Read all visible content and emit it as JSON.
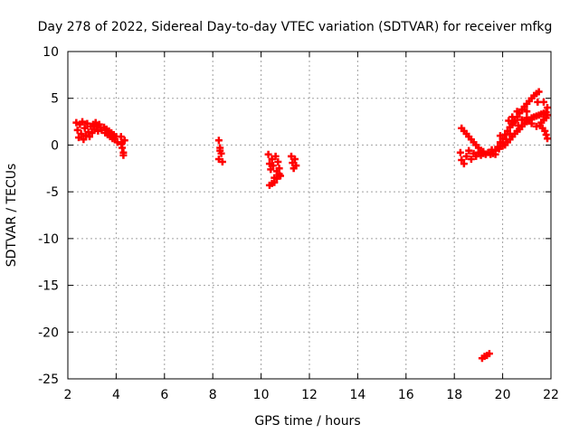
{
  "chart_data": {
    "type": "scatter",
    "title": "Day 278 of 2022, Sidereal Day-to-day VTEC variation (SDTVAR) for receiver mfkg",
    "xlabel": "GPS time / hours",
    "ylabel": "SDTVAR / TECUs",
    "xlim": [
      2,
      22
    ],
    "ylim": [
      -25,
      10
    ],
    "xticks": [
      2,
      4,
      6,
      8,
      10,
      12,
      14,
      16,
      18,
      20,
      22
    ],
    "yticks": [
      -25,
      -20,
      -15,
      -10,
      -5,
      0,
      5,
      10
    ],
    "grid": true,
    "marker_color": "#ff0000",
    "series": [
      {
        "name": "SDTVAR",
        "points": [
          [
            2.35,
            2.4
          ],
          [
            2.4,
            1.6
          ],
          [
            2.45,
            0.8
          ],
          [
            2.5,
            2.2
          ],
          [
            2.55,
            1.2
          ],
          [
            2.6,
            2.5
          ],
          [
            2.65,
            0.6
          ],
          [
            2.7,
            1.8
          ],
          [
            2.75,
            1.0
          ],
          [
            2.8,
            2.3
          ],
          [
            2.85,
            1.4
          ],
          [
            2.9,
            0.9
          ],
          [
            2.95,
            2.0
          ],
          [
            3.0,
            1.3
          ],
          [
            3.05,
            2.2
          ],
          [
            3.1,
            1.7
          ],
          [
            3.15,
            2.4
          ],
          [
            3.2,
            2.0
          ],
          [
            3.25,
            1.5
          ],
          [
            3.3,
            2.2
          ],
          [
            3.35,
            1.9
          ],
          [
            3.4,
            1.6
          ],
          [
            3.5,
            1.9
          ],
          [
            3.55,
            1.3
          ],
          [
            3.6,
            1.7
          ],
          [
            3.65,
            1.1
          ],
          [
            3.7,
            1.5
          ],
          [
            3.75,
            0.9
          ],
          [
            3.8,
            1.3
          ],
          [
            3.85,
            0.7
          ],
          [
            3.9,
            1.1
          ],
          [
            3.95,
            0.6
          ],
          [
            4.0,
            0.9
          ],
          [
            4.05,
            0.3
          ],
          [
            4.2,
            0.9
          ],
          [
            4.25,
            0.3
          ],
          [
            4.25,
            -0.3
          ],
          [
            4.3,
            -0.8
          ],
          [
            4.35,
            0.5
          ],
          [
            4.3,
            -1.1
          ],
          [
            4.22,
            0.1
          ],
          [
            8.25,
            0.5
          ],
          [
            8.3,
            -0.3
          ],
          [
            8.35,
            -0.9
          ],
          [
            8.25,
            -1.5
          ],
          [
            8.4,
            -1.8
          ],
          [
            8.3,
            -0.6
          ],
          [
            10.3,
            -1.0
          ],
          [
            10.35,
            -2.0
          ],
          [
            10.4,
            -2.6
          ],
          [
            10.45,
            -1.5
          ],
          [
            10.5,
            -2.2
          ],
          [
            10.55,
            -3.5
          ],
          [
            10.6,
            -1.2
          ],
          [
            10.65,
            -2.8
          ],
          [
            10.7,
            -1.8
          ],
          [
            10.75,
            -2.5
          ],
          [
            10.8,
            -3.3
          ],
          [
            10.35,
            -4.3
          ],
          [
            10.45,
            -4.1
          ],
          [
            10.55,
            -4.0
          ],
          [
            10.65,
            -3.6
          ],
          [
            10.75,
            -3.1
          ],
          [
            11.25,
            -1.2
          ],
          [
            11.3,
            -1.9
          ],
          [
            11.35,
            -2.5
          ],
          [
            11.4,
            -1.5
          ],
          [
            11.45,
            -2.2
          ],
          [
            18.3,
            1.8
          ],
          [
            18.4,
            1.5
          ],
          [
            18.5,
            1.2
          ],
          [
            18.6,
            0.9
          ],
          [
            18.7,
            0.6
          ],
          [
            18.8,
            0.3
          ],
          [
            18.9,
            0.0
          ],
          [
            19.0,
            -0.3
          ],
          [
            19.1,
            -0.6
          ],
          [
            19.2,
            -0.9
          ],
          [
            18.25,
            -0.8
          ],
          [
            18.3,
            -1.6
          ],
          [
            18.4,
            -2.0
          ],
          [
            18.5,
            -1.2
          ],
          [
            18.6,
            -0.6
          ],
          [
            18.7,
            -1.5
          ],
          [
            18.8,
            -0.9
          ],
          [
            18.9,
            -1.2
          ],
          [
            19.0,
            -0.8
          ],
          [
            19.1,
            -1.1
          ],
          [
            19.2,
            -0.7
          ],
          [
            19.3,
            -1.0
          ],
          [
            19.4,
            -0.8
          ],
          [
            19.5,
            -1.0
          ],
          [
            19.6,
            -0.9
          ],
          [
            19.7,
            -0.6
          ],
          [
            19.8,
            -0.2
          ],
          [
            19.9,
            0.3
          ],
          [
            20.0,
            0.7
          ],
          [
            20.1,
            1.1
          ],
          [
            20.2,
            1.5
          ],
          [
            20.3,
            1.9
          ],
          [
            20.4,
            2.2
          ],
          [
            20.5,
            2.6
          ],
          [
            20.6,
            3.0
          ],
          [
            20.7,
            3.4
          ],
          [
            20.8,
            3.8
          ],
          [
            20.9,
            4.1
          ],
          [
            21.0,
            4.4
          ],
          [
            21.1,
            4.7
          ],
          [
            21.2,
            5.0
          ],
          [
            21.3,
            5.3
          ],
          [
            21.4,
            5.5
          ],
          [
            21.5,
            5.7
          ],
          [
            20.1,
            0.0
          ],
          [
            20.2,
            0.3
          ],
          [
            20.3,
            0.6
          ],
          [
            20.4,
            0.9
          ],
          [
            20.5,
            1.2
          ],
          [
            20.6,
            1.5
          ],
          [
            20.7,
            1.7
          ],
          [
            20.8,
            2.0
          ],
          [
            20.9,
            2.3
          ],
          [
            21.0,
            2.5
          ],
          [
            21.1,
            2.7
          ],
          [
            21.2,
            2.9
          ],
          [
            21.3,
            3.0
          ],
          [
            21.4,
            3.1
          ],
          [
            21.5,
            3.2
          ],
          [
            21.6,
            3.3
          ],
          [
            21.7,
            3.4
          ],
          [
            21.8,
            3.5
          ],
          [
            21.6,
            2.4
          ],
          [
            21.7,
            2.7
          ],
          [
            21.8,
            2.9
          ],
          [
            21.85,
            3.2
          ],
          [
            21.75,
            1.5
          ],
          [
            21.8,
            1.1
          ],
          [
            21.85,
            0.7
          ],
          [
            21.65,
            1.8
          ],
          [
            21.55,
            2.1
          ],
          [
            21.4,
            2.0
          ],
          [
            21.2,
            2.3
          ],
          [
            21.0,
            2.9
          ],
          [
            20.8,
            2.7
          ],
          [
            20.65,
            2.1
          ],
          [
            20.45,
            2.4
          ],
          [
            20.3,
            1.2
          ],
          [
            20.15,
            0.6
          ],
          [
            20.0,
            0.2
          ],
          [
            19.85,
            -0.4
          ],
          [
            19.7,
            -1.0
          ],
          [
            19.55,
            -0.5
          ],
          [
            20.0,
            -0.1
          ],
          [
            20.25,
            2.6
          ],
          [
            20.6,
            3.6
          ],
          [
            21.0,
            3.6
          ],
          [
            21.45,
            4.6
          ],
          [
            21.7,
            4.6
          ],
          [
            21.85,
            4.0
          ],
          [
            20.4,
            3.0
          ],
          [
            19.9,
            1.0
          ],
          [
            19.15,
            -22.8
          ],
          [
            19.25,
            -22.6
          ],
          [
            19.35,
            -22.5
          ],
          [
            19.45,
            -22.3
          ]
        ]
      }
    ]
  }
}
